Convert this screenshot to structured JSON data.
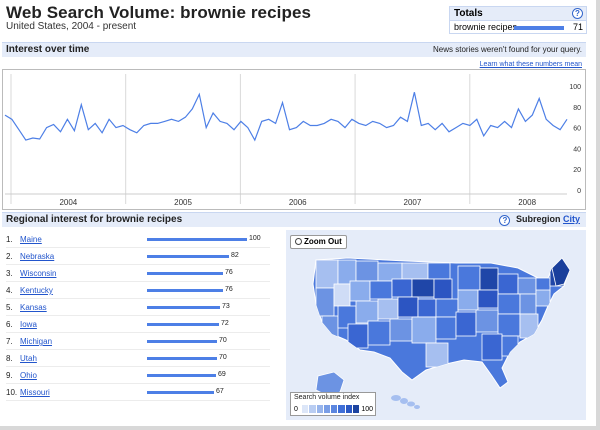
{
  "header": {
    "title": "Web Search Volume: brownie recipes",
    "subtitle": "United States, 2004 - present"
  },
  "totals": {
    "heading": "Totals",
    "help": "?",
    "term": "brownie recipes",
    "value": "71",
    "bar_fraction": 0.71
  },
  "interest": {
    "heading": "Interest over time",
    "news_note": "News stories weren't found for your query.",
    "learn_link": "Learn what these numbers mean"
  },
  "chart_data": {
    "type": "line",
    "xlabel": "",
    "ylabel": "",
    "x_tick_labels": [
      "2004",
      "2005",
      "2006",
      "2007",
      "2008"
    ],
    "y_tick_labels": [
      "100",
      "80",
      "60",
      "40",
      "20",
      "0"
    ],
    "ylim": [
      0,
      100
    ],
    "grid": true,
    "series": [
      {
        "color": "#4d7fe6",
        "values": [
          72,
          68,
          58,
          48,
          50,
          49,
          60,
          63,
          56,
          68,
          57,
          82,
          58,
          64,
          55,
          68,
          60,
          62,
          58,
          55,
          62,
          64,
          64,
          66,
          68,
          66,
          70,
          78,
          92,
          60,
          74,
          66,
          64,
          58,
          66,
          60,
          48,
          66,
          68,
          64,
          84,
          58,
          60,
          66,
          62,
          62,
          64,
          68,
          66,
          60,
          68,
          64,
          62,
          66,
          64,
          60,
          62,
          70,
          66,
          94,
          62,
          64,
          58,
          64,
          56,
          60,
          64,
          62,
          68,
          52,
          62,
          60,
          66,
          60,
          78,
          66,
          72,
          88,
          68,
          62,
          58,
          68
        ]
      }
    ]
  },
  "regional": {
    "heading": "Regional interest  for brownie recipes",
    "subregion_label": "Subregion",
    "subregion_link": "City",
    "help": "?",
    "rows": [
      {
        "rank": "1.",
        "name": "Maine",
        "value": "100",
        "fraction": 1.0
      },
      {
        "rank": "2.",
        "name": "Nebraska",
        "value": "82",
        "fraction": 0.82
      },
      {
        "rank": "3.",
        "name": "Wisconsin",
        "value": "76",
        "fraction": 0.76
      },
      {
        "rank": "4.",
        "name": "Kentucky",
        "value": "76",
        "fraction": 0.76
      },
      {
        "rank": "5.",
        "name": "Kansas",
        "value": "73",
        "fraction": 0.73
      },
      {
        "rank": "6.",
        "name": "Iowa",
        "value": "72",
        "fraction": 0.72
      },
      {
        "rank": "7.",
        "name": "Michigan",
        "value": "70",
        "fraction": 0.7
      },
      {
        "rank": "8.",
        "name": "Utah",
        "value": "70",
        "fraction": 0.7
      },
      {
        "rank": "9.",
        "name": "Ohio",
        "value": "69",
        "fraction": 0.69
      },
      {
        "rank": "10.",
        "name": "Missouri",
        "value": "67",
        "fraction": 0.67
      }
    ]
  },
  "map": {
    "zoom_label": "Zoom Out",
    "legend_title": "Search volume index",
    "legend_min": "0",
    "legend_max": "100",
    "legend_colors": [
      "#dce6f8",
      "#b9cdf2",
      "#98b5ec",
      "#7a9ee6",
      "#5b86df",
      "#3f6fd8",
      "#2a58c4",
      "#1d44a0"
    ],
    "land_colors": [
      "#a6bff0",
      "#6c93e3",
      "#4a78dc",
      "#3a66d2",
      "#2c55c2",
      "#1f46a8",
      "#8aacec",
      "#cfdcf6"
    ]
  }
}
